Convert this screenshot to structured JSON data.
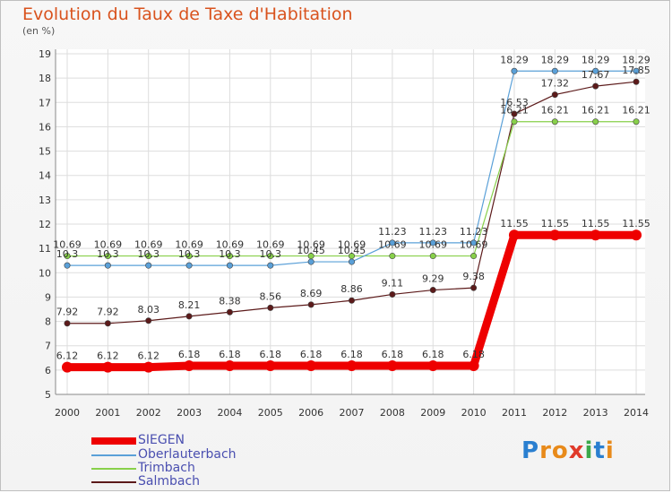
{
  "chart_data": {
    "type": "line",
    "title": "Evolution du Taux de Taxe d'Habitation",
    "subtitle": "(en %)",
    "xlabel": "",
    "ylabel": "",
    "x": [
      "2000",
      "2001",
      "2002",
      "2003",
      "2004",
      "2005",
      "2006",
      "2007",
      "2008",
      "2009",
      "2010",
      "2011",
      "2012",
      "2013",
      "2014"
    ],
    "ylim": [
      5,
      19
    ],
    "yticks": [
      5,
      6,
      7,
      8,
      9,
      10,
      11,
      12,
      13,
      14,
      15,
      16,
      17,
      18,
      19
    ],
    "grid": true,
    "legend_position": "bottom-left",
    "series": [
      {
        "name": "Salmbach",
        "color": "#5c1a1a",
        "values": [
          7.92,
          7.92,
          8.03,
          8.21,
          8.38,
          8.56,
          8.69,
          8.86,
          9.11,
          9.29,
          9.38,
          16.53,
          17.32,
          17.67,
          17.85
        ],
        "labels": [
          "7.92",
          "7.92",
          "8.03",
          "8.21",
          "8.38",
          "8.56",
          "8.69",
          "8.86",
          "9.11",
          "9.29",
          "9.38",
          "16.53",
          "17.32",
          "17.67",
          "17.85"
        ]
      },
      {
        "name": "Trimbach",
        "color": "#88d04a",
        "values": [
          10.69,
          10.69,
          10.69,
          10.69,
          10.69,
          10.69,
          10.69,
          10.69,
          10.69,
          10.69,
          10.69,
          16.21,
          16.21,
          16.21,
          16.21
        ],
        "labels": [
          "10.69",
          "10.69",
          "10.69",
          "10.69",
          "10.69",
          "10.69",
          "10.69",
          "10.69",
          "10.69",
          "10.69",
          "10.69",
          "16.21",
          "16.21",
          "16.21",
          "16.21"
        ]
      },
      {
        "name": "Oberlauterbach",
        "color": "#5aa0d8",
        "values": [
          10.3,
          10.3,
          10.3,
          10.3,
          10.3,
          10.3,
          10.45,
          10.45,
          11.23,
          11.23,
          11.23,
          18.29,
          18.29,
          18.29,
          18.29
        ],
        "labels": [
          "10.3",
          "10.3",
          "10.3",
          "10.3",
          "10.3",
          "10.3",
          "10.45",
          "10.45",
          "11.23",
          "11.23",
          "11.23",
          "18.29",
          "18.29",
          "18.29",
          "18.29"
        ]
      },
      {
        "name": "SIEGEN",
        "color": "#ee0000",
        "values": [
          6.12,
          6.12,
          6.12,
          6.18,
          6.18,
          6.18,
          6.18,
          6.18,
          6.18,
          6.18,
          6.18,
          11.55,
          11.55,
          11.55,
          11.55
        ],
        "labels": [
          "6.12",
          "6.12",
          "6.12",
          "6.18",
          "6.18",
          "6.18",
          "6.18",
          "6.18",
          "6.18",
          "6.18",
          "6.18",
          "11.55",
          "11.55",
          "11.55",
          "11.55"
        ]
      }
    ],
    "legend": [
      "SIEGEN",
      "Oberlauterbach",
      "Trimbach",
      "Salmbach"
    ]
  },
  "logo": {
    "text": "Proxiti",
    "letters": [
      "P",
      "r",
      "o",
      "x",
      "i",
      "t",
      "i"
    ],
    "colors": [
      "#2a7fd0",
      "#e88a1a",
      "#e88a1a",
      "#e03a2a",
      "#3aa84a",
      "#2a7fd0",
      "#e88a1a"
    ]
  }
}
